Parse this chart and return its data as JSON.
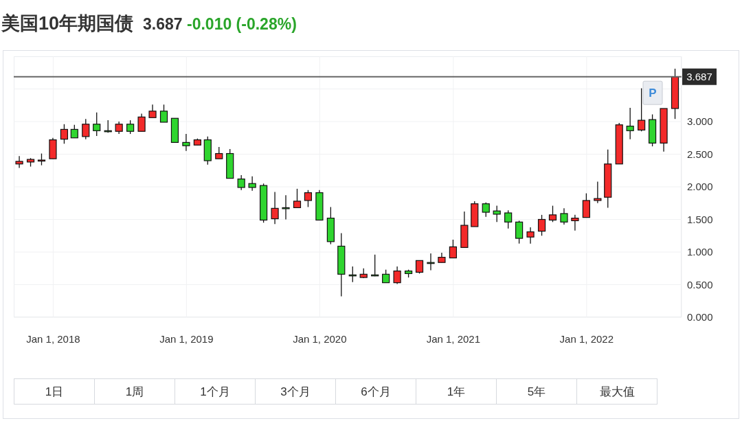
{
  "chart_data": {
    "type": "candlestick",
    "title": "美国10年期国债",
    "subtitle": "3.687 -0.010 (-0.28%)",
    "x": [
      "2017-10",
      "2017-11",
      "2017-12",
      "2018-01",
      "2018-02",
      "2018-03",
      "2018-04",
      "2018-05",
      "2018-06",
      "2018-07",
      "2018-08",
      "2018-09",
      "2018-10",
      "2018-11",
      "2018-12",
      "2019-01",
      "2019-02",
      "2019-03",
      "2019-04",
      "2019-05",
      "2019-06",
      "2019-07",
      "2019-08",
      "2019-09",
      "2019-10",
      "2019-11",
      "2019-12",
      "2020-01",
      "2020-02",
      "2020-03",
      "2020-04",
      "2020-05",
      "2020-06",
      "2020-07",
      "2020-08",
      "2020-09",
      "2020-10",
      "2020-11",
      "2020-12",
      "2021-01",
      "2021-02",
      "2021-03",
      "2021-04",
      "2021-05",
      "2021-06",
      "2021-07",
      "2021-08",
      "2021-09",
      "2021-10",
      "2021-11",
      "2021-12",
      "2022-01",
      "2022-02",
      "2022-03",
      "2022-04",
      "2022-05",
      "2022-06",
      "2022-07",
      "2022-08",
      "2022-09"
    ],
    "ohlc": [
      [
        2.35,
        2.47,
        2.29,
        2.39
      ],
      [
        2.38,
        2.44,
        2.31,
        2.42
      ],
      [
        2.41,
        2.51,
        2.33,
        2.41
      ],
      [
        2.43,
        2.75,
        2.43,
        2.72
      ],
      [
        2.73,
        2.96,
        2.66,
        2.88
      ],
      [
        2.88,
        2.95,
        2.75,
        2.75
      ],
      [
        2.77,
        3.04,
        2.73,
        2.96
      ],
      [
        2.96,
        3.14,
        2.78,
        2.86
      ],
      [
        2.86,
        3.02,
        2.83,
        2.85
      ],
      [
        2.85,
        3.0,
        2.81,
        2.96
      ],
      [
        2.96,
        3.02,
        2.81,
        2.85
      ],
      [
        2.85,
        3.12,
        2.85,
        3.07
      ],
      [
        3.06,
        3.26,
        3.06,
        3.16
      ],
      [
        3.16,
        3.26,
        2.99,
        2.99
      ],
      [
        3.05,
        3.05,
        2.68,
        2.68
      ],
      [
        2.68,
        2.81,
        2.55,
        2.63
      ],
      [
        2.64,
        2.74,
        2.64,
        2.72
      ],
      [
        2.72,
        2.77,
        2.34,
        2.4
      ],
      [
        2.43,
        2.61,
        2.43,
        2.51
      ],
      [
        2.51,
        2.58,
        2.13,
        2.13
      ],
      [
        2.12,
        2.18,
        1.95,
        1.99
      ],
      [
        2.05,
        2.16,
        1.94,
        1.99
      ],
      [
        2.02,
        2.05,
        1.45,
        1.49
      ],
      [
        1.51,
        1.92,
        1.43,
        1.67
      ],
      [
        1.68,
        1.87,
        1.5,
        1.68
      ],
      [
        1.68,
        1.97,
        1.68,
        1.78
      ],
      [
        1.79,
        1.95,
        1.69,
        1.91
      ],
      [
        1.91,
        1.95,
        1.49,
        1.49
      ],
      [
        1.52,
        1.69,
        1.12,
        1.16
      ],
      [
        1.09,
        1.29,
        0.32,
        0.66
      ],
      [
        0.65,
        0.78,
        0.54,
        0.64
      ],
      [
        0.61,
        0.75,
        0.6,
        0.66
      ],
      [
        0.65,
        0.96,
        0.63,
        0.64
      ],
      [
        0.66,
        0.73,
        0.53,
        0.53
      ],
      [
        0.53,
        0.78,
        0.51,
        0.71
      ],
      [
        0.71,
        0.73,
        0.61,
        0.67
      ],
      [
        0.69,
        0.87,
        0.67,
        0.87
      ],
      [
        0.84,
        0.98,
        0.72,
        0.84
      ],
      [
        0.84,
        0.99,
        0.84,
        0.92
      ],
      [
        0.91,
        1.19,
        0.91,
        1.08
      ],
      [
        1.07,
        1.62,
        1.07,
        1.41
      ],
      [
        1.39,
        1.78,
        1.39,
        1.74
      ],
      [
        1.74,
        1.76,
        1.54,
        1.61
      ],
      [
        1.63,
        1.71,
        1.46,
        1.58
      ],
      [
        1.6,
        1.64,
        1.36,
        1.46
      ],
      [
        1.46,
        1.48,
        1.13,
        1.21
      ],
      [
        1.23,
        1.38,
        1.13,
        1.31
      ],
      [
        1.32,
        1.57,
        1.25,
        1.5
      ],
      [
        1.49,
        1.71,
        1.46,
        1.57
      ],
      [
        1.59,
        1.67,
        1.42,
        1.46
      ],
      [
        1.48,
        1.57,
        1.33,
        1.52
      ],
      [
        1.53,
        1.9,
        1.53,
        1.79
      ],
      [
        1.79,
        2.08,
        1.75,
        1.82
      ],
      [
        1.84,
        2.57,
        1.68,
        2.35
      ],
      [
        2.35,
        2.98,
        2.35,
        2.95
      ],
      [
        2.93,
        3.21,
        2.73,
        2.86
      ],
      [
        2.87,
        3.51,
        2.85,
        3.02
      ],
      [
        3.03,
        3.11,
        2.62,
        2.67
      ],
      [
        2.67,
        3.2,
        2.54,
        3.2
      ],
      [
        3.2,
        3.81,
        3.04,
        3.687
      ]
    ],
    "colors": [
      "#f32a2a",
      "#f32a2a",
      "#f32a2a",
      "#f32a2a",
      "#f32a2a",
      "#2fd52f",
      "#f32a2a",
      "#2fd52f",
      "#2fd52f",
      "#f32a2a",
      "#2fd52f",
      "#f32a2a",
      "#f32a2a",
      "#2fd52f",
      "#2fd52f",
      "#2fd52f",
      "#f32a2a",
      "#2fd52f",
      "#f32a2a",
      "#2fd52f",
      "#2fd52f",
      "#2fd52f",
      "#2fd52f",
      "#f32a2a",
      "#2fd52f",
      "#f32a2a",
      "#f32a2a",
      "#2fd52f",
      "#2fd52f",
      "#2fd52f",
      "#2fd52f",
      "#f32a2a",
      "#2fd52f",
      "#2fd52f",
      "#f32a2a",
      "#2fd52f",
      "#f32a2a",
      "#2fd52f",
      "#f32a2a",
      "#f32a2a",
      "#f32a2a",
      "#f32a2a",
      "#2fd52f",
      "#2fd52f",
      "#2fd52f",
      "#2fd52f",
      "#f32a2a",
      "#f32a2a",
      "#f32a2a",
      "#2fd52f",
      "#f32a2a",
      "#f32a2a",
      "#f32a2a",
      "#f32a2a",
      "#f32a2a",
      "#2fd52f",
      "#f32a2a",
      "#2fd52f",
      "#f32a2a",
      "#f32a2a"
    ],
    "xlim": [
      "2017-09-15",
      "2022-09-18"
    ],
    "xticks": [
      {
        "value": "2018-01-01",
        "label": "Jan 1, 2018"
      },
      {
        "value": "2019-01-01",
        "label": "Jan 1, 2019"
      },
      {
        "value": "2020-01-01",
        "label": "Jan 1, 2020"
      },
      {
        "value": "2021-01-01",
        "label": "Jan 1, 2021"
      },
      {
        "value": "2022-01-01",
        "label": "Jan 1, 2022"
      }
    ],
    "ylim": [
      0,
      4
    ],
    "yticks": [
      {
        "value": 0,
        "label": "0.000"
      },
      {
        "value": 0.5,
        "label": "0.500"
      },
      {
        "value": 1,
        "label": "1.000"
      },
      {
        "value": 1.5,
        "label": "1.500"
      },
      {
        "value": 2,
        "label": "2.000"
      },
      {
        "value": 2.5,
        "label": "2.500"
      },
      {
        "value": 3,
        "label": "3.000"
      },
      {
        "value": 3.5,
        "label": null
      }
    ],
    "grid": true,
    "ref_lines": [
      {
        "axis": "y",
        "value": 3.687,
        "label": "3.687",
        "color": "#666666"
      }
    ],
    "annotations": [
      {
        "text": "P",
        "x": "2022-07",
        "y": 3.44
      },
      "1日",
      "1周",
      "1个月",
      "3个月",
      "6个月",
      "1年",
      "5年",
      "最大值"
    ]
  }
}
